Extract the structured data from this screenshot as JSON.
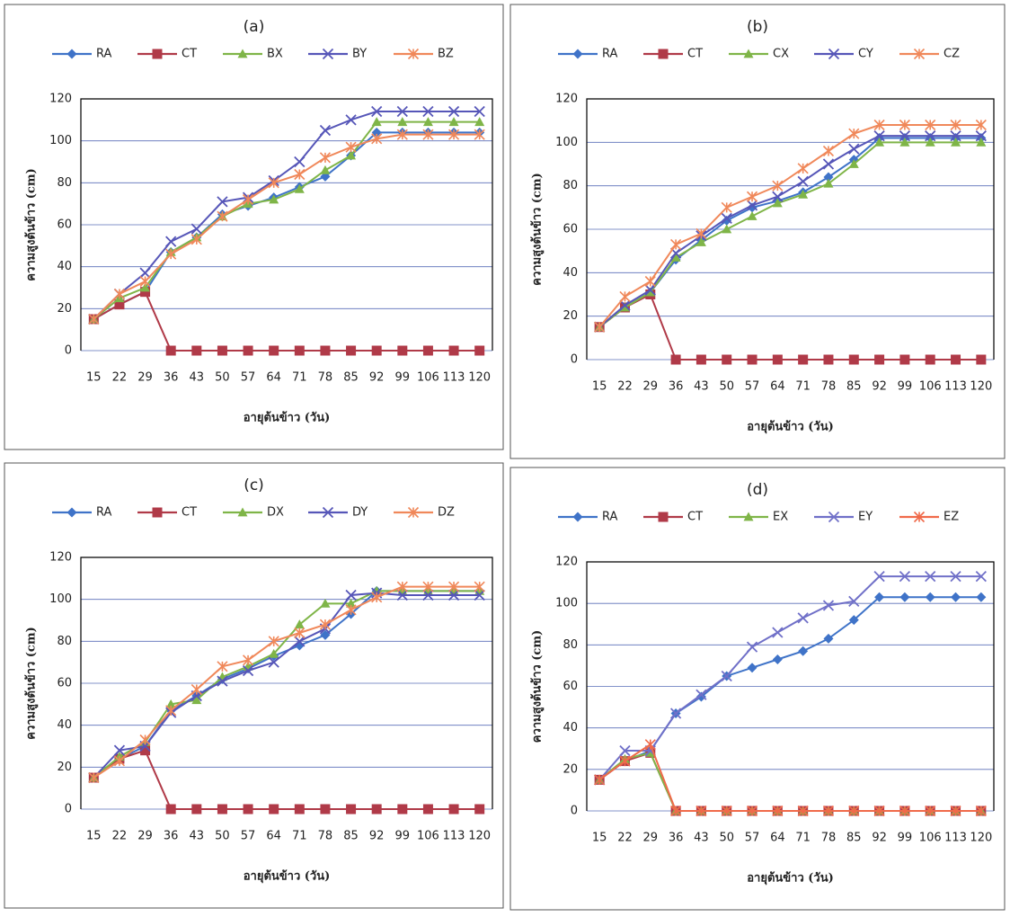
{
  "chart_data": [
    {
      "type": "line",
      "title": "(a)",
      "y_label": "ความสูงต้นข้าว (cm)",
      "x_label": "อายุต้นข้าว (วัน)",
      "categories": [
        "15",
        "22",
        "29",
        "36",
        "43",
        "50",
        "57",
        "64",
        "71",
        "78",
        "85",
        "92",
        "99",
        "106",
        "113",
        "120"
      ],
      "ylim": [
        0,
        120
      ],
      "yticks": [
        0,
        20,
        40,
        60,
        80,
        100,
        120
      ],
      "grid": true,
      "series": [
        {
          "name": "RA",
          "color": "#3f73c8",
          "marker": "diamond",
          "values": [
            15,
            22,
            28,
            47,
            54,
            65,
            69,
            73,
            78,
            83,
            93,
            104,
            104,
            104,
            104,
            104
          ]
        },
        {
          "name": "CT",
          "color": "#b03a48",
          "marker": "square",
          "values": [
            15,
            22,
            28,
            0,
            0,
            0,
            0,
            0,
            0,
            0,
            0,
            0,
            0,
            0,
            0,
            0
          ]
        },
        {
          "name": "BX",
          "color": "#7fb548",
          "marker": "triangle",
          "values": [
            15,
            25,
            30,
            47,
            54,
            64,
            70,
            72,
            77,
            86,
            93,
            109,
            109,
            109,
            109,
            109
          ]
        },
        {
          "name": "BY",
          "color": "#5656b8",
          "marker": "x",
          "values": [
            15,
            27,
            37,
            52,
            58,
            71,
            73,
            81,
            90,
            105,
            110,
            114,
            114,
            114,
            114,
            114
          ]
        },
        {
          "name": "BZ",
          "color": "#f0885a",
          "marker": "asterisk",
          "values": [
            15,
            27,
            33,
            46,
            53,
            64,
            72,
            80,
            84,
            92,
            97,
            101,
            103,
            103,
            103,
            103
          ]
        }
      ]
    },
    {
      "type": "line",
      "title": "(b)",
      "y_label": "ความสูงต้นข้าว (cm)",
      "x_label": "อายุต้นข้าว (วัน)",
      "categories": [
        "15",
        "22",
        "29",
        "36",
        "43",
        "50",
        "57",
        "64",
        "71",
        "78",
        "85",
        "92",
        "99",
        "106",
        "113",
        "120"
      ],
      "ylim": [
        0,
        120
      ],
      "yticks": [
        0,
        20,
        40,
        60,
        80,
        100,
        120
      ],
      "grid": true,
      "series": [
        {
          "name": "RA",
          "color": "#3f73c8",
          "marker": "diamond",
          "values": [
            15,
            24,
            31,
            46,
            55,
            64,
            70,
            73,
            77,
            84,
            92,
            102,
            102,
            102,
            102,
            102
          ]
        },
        {
          "name": "CT",
          "color": "#b03a48",
          "marker": "square",
          "values": [
            15,
            24,
            30,
            0,
            0,
            0,
            0,
            0,
            0,
            0,
            0,
            0,
            0,
            0,
            0,
            0
          ]
        },
        {
          "name": "CX",
          "color": "#7fb548",
          "marker": "triangle",
          "values": [
            15,
            24,
            31,
            47,
            54,
            60,
            66,
            72,
            76,
            81,
            90,
            100,
            100,
            100,
            100,
            100
          ]
        },
        {
          "name": "CY",
          "color": "#5656b8",
          "marker": "x",
          "values": [
            15,
            25,
            32,
            49,
            57,
            65,
            71,
            75,
            82,
            90,
            97,
            103,
            103,
            103,
            103,
            103
          ]
        },
        {
          "name": "CZ",
          "color": "#f0885a",
          "marker": "asterisk",
          "values": [
            15,
            29,
            36,
            53,
            58,
            70,
            75,
            80,
            88,
            96,
            104,
            108,
            108,
            108,
            108,
            108
          ]
        }
      ]
    },
    {
      "type": "line",
      "title": "(c)",
      "y_label": "ความสูงต้นข้าว (cm)",
      "x_label": "อายุต้นข้าว (วัน)",
      "categories": [
        "15",
        "22",
        "29",
        "36",
        "43",
        "50",
        "57",
        "64",
        "71",
        "78",
        "85",
        "92",
        "99",
        "106",
        "113",
        "120"
      ],
      "ylim": [
        0,
        120
      ],
      "yticks": [
        0,
        20,
        40,
        60,
        80,
        100,
        120
      ],
      "grid": true,
      "series": [
        {
          "name": "RA",
          "color": "#3f73c8",
          "marker": "diamond",
          "values": [
            15,
            24,
            30,
            47,
            54,
            62,
            67,
            73,
            78,
            83,
            93,
            104,
            104,
            104,
            104,
            104
          ]
        },
        {
          "name": "CT",
          "color": "#b03a48",
          "marker": "square",
          "values": [
            15,
            24,
            28,
            0,
            0,
            0,
            0,
            0,
            0,
            0,
            0,
            0,
            0,
            0,
            0,
            0
          ]
        },
        {
          "name": "DX",
          "color": "#7fb548",
          "marker": "triangle",
          "values": [
            15,
            25,
            32,
            50,
            52,
            63,
            68,
            74,
            88,
            98,
            98,
            104,
            104,
            104,
            104,
            104
          ]
        },
        {
          "name": "DY",
          "color": "#5656b8",
          "marker": "x",
          "values": [
            15,
            28,
            30,
            46,
            54,
            61,
            66,
            70,
            80,
            86,
            102,
            103,
            102,
            102,
            102,
            102
          ]
        },
        {
          "name": "DZ",
          "color": "#f0885a",
          "marker": "asterisk",
          "values": [
            15,
            23,
            33,
            47,
            57,
            68,
            71,
            80,
            84,
            88,
            95,
            101,
            106,
            106,
            106,
            106
          ]
        }
      ]
    },
    {
      "type": "line",
      "title": "(d)",
      "y_label": "ความสูงต้นข้าว (cm)",
      "x_label": "อายุต้นข้าว (วัน)",
      "categories": [
        "15",
        "22",
        "29",
        "36",
        "43",
        "50",
        "57",
        "64",
        "71",
        "78",
        "85",
        "92",
        "99",
        "106",
        "113",
        "120"
      ],
      "ylim": [
        0,
        120
      ],
      "yticks": [
        0,
        20,
        40,
        60,
        80,
        100,
        120
      ],
      "grid": true,
      "series": [
        {
          "name": "RA",
          "color": "#3f73c8",
          "marker": "diamond",
          "values": [
            15,
            24,
            29,
            47,
            55,
            65,
            69,
            73,
            77,
            83,
            92,
            103,
            103,
            103,
            103,
            103
          ]
        },
        {
          "name": "CT",
          "color": "#b03a48",
          "marker": "square",
          "values": [
            15,
            24,
            28,
            0,
            0,
            0,
            0,
            0,
            0,
            0,
            0,
            0,
            0,
            0,
            0,
            0
          ]
        },
        {
          "name": "EX",
          "color": "#7fb548",
          "marker": "triangle",
          "values": [
            15,
            25,
            28,
            0,
            0,
            0,
            0,
            0,
            0,
            0,
            0,
            0,
            0,
            0,
            0,
            0
          ]
        },
        {
          "name": "EY",
          "color": "#7070c8",
          "marker": "x",
          "values": [
            15,
            29,
            29,
            47,
            56,
            65,
            79,
            86,
            93,
            99,
            101,
            113,
            113,
            113,
            113,
            113
          ]
        },
        {
          "name": "EZ",
          "color": "#f06a4a",
          "marker": "asterisk",
          "values": [
            15,
            24,
            32,
            0,
            0,
            0,
            0,
            0,
            0,
            0,
            0,
            0,
            0,
            0,
            0,
            0
          ]
        }
      ]
    }
  ]
}
